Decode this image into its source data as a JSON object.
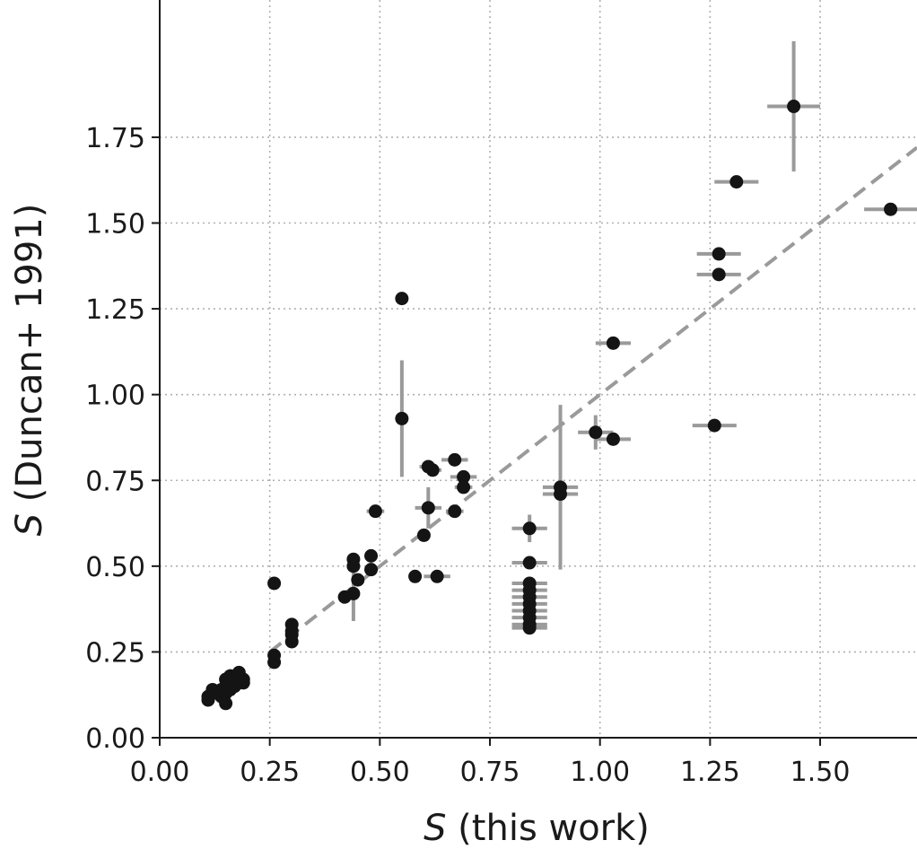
{
  "chart_data": {
    "type": "scatter",
    "title": "",
    "xlabel_symbol": "S",
    "xlabel_rest": " (this work)",
    "ylabel_symbol": "S",
    "ylabel_rest": " (Duncan+ 1991)",
    "xlim": [
      0.0,
      1.72
    ],
    "ylim": [
      0.0,
      2.15
    ],
    "xticks": [
      "0.00",
      "0.25",
      "0.50",
      "0.75",
      "1.00",
      "1.25",
      "1.50"
    ],
    "yticks": [
      "0.00",
      "0.25",
      "0.50",
      "0.75",
      "1.00",
      "1.25",
      "1.50",
      "1.75"
    ],
    "grid": true,
    "reference_line": {
      "style": "dashed",
      "x": [
        0.25,
        1.72
      ],
      "y": [
        0.25,
        1.72
      ]
    },
    "colors": {
      "points": "#141414",
      "errorbars": "#9a9a9a",
      "reference_line": "#9a9a9a",
      "grid": "#b0b0b0",
      "axis": "#1a1a1a"
    },
    "points": [
      {
        "x": 0.11,
        "y": 0.11
      },
      {
        "x": 0.11,
        "y": 0.12
      },
      {
        "x": 0.12,
        "y": 0.13
      },
      {
        "x": 0.12,
        "y": 0.14
      },
      {
        "x": 0.14,
        "y": 0.12
      },
      {
        "x": 0.14,
        "y": 0.14
      },
      {
        "x": 0.15,
        "y": 0.1
      },
      {
        "x": 0.15,
        "y": 0.13
      },
      {
        "x": 0.15,
        "y": 0.15
      },
      {
        "x": 0.15,
        "y": 0.17
      },
      {
        "x": 0.16,
        "y": 0.14
      },
      {
        "x": 0.16,
        "y": 0.16
      },
      {
        "x": 0.16,
        "y": 0.18
      },
      {
        "x": 0.17,
        "y": 0.15
      },
      {
        "x": 0.17,
        "y": 0.17
      },
      {
        "x": 0.18,
        "y": 0.16
      },
      {
        "x": 0.18,
        "y": 0.18
      },
      {
        "x": 0.18,
        "y": 0.19
      },
      {
        "x": 0.19,
        "y": 0.16
      },
      {
        "x": 0.19,
        "y": 0.17
      },
      {
        "x": 0.26,
        "y": 0.22
      },
      {
        "x": 0.26,
        "y": 0.24
      },
      {
        "x": 0.26,
        "y": 0.45
      },
      {
        "x": 0.3,
        "y": 0.28
      },
      {
        "x": 0.3,
        "y": 0.3
      },
      {
        "x": 0.3,
        "y": 0.31
      },
      {
        "x": 0.3,
        "y": 0.33
      },
      {
        "x": 0.42,
        "y": 0.41
      },
      {
        "x": 0.44,
        "y": 0.42,
        "yerr": 0.08
      },
      {
        "x": 0.44,
        "y": 0.5,
        "xerr": 0.01
      },
      {
        "x": 0.44,
        "y": 0.52,
        "xerr": 0.01
      },
      {
        "x": 0.45,
        "y": 0.46
      },
      {
        "x": 0.48,
        "y": 0.49
      },
      {
        "x": 0.48,
        "y": 0.53
      },
      {
        "x": 0.49,
        "y": 0.66,
        "xerr": 0.02
      },
      {
        "x": 0.55,
        "y": 1.28,
        "xerr": 0.01
      },
      {
        "x": 0.55,
        "y": 0.93,
        "yerr": 0.17
      },
      {
        "x": 0.58,
        "y": 0.47,
        "xerr": 0.01
      },
      {
        "x": 0.6,
        "y": 0.59
      },
      {
        "x": 0.61,
        "y": 0.67,
        "xerr": 0.03,
        "yerr": 0.06
      },
      {
        "x": 0.61,
        "y": 0.79,
        "xerr": 0.02
      },
      {
        "x": 0.62,
        "y": 0.78,
        "xerr": 0.02
      },
      {
        "x": 0.63,
        "y": 0.47,
        "xerr": 0.03
      },
      {
        "x": 0.67,
        "y": 0.81,
        "xerr": 0.03
      },
      {
        "x": 0.67,
        "y": 0.66,
        "xerr": 0.02
      },
      {
        "x": 0.69,
        "y": 0.76,
        "xerr": 0.03
      },
      {
        "x": 0.69,
        "y": 0.73,
        "xerr": 0.02
      },
      {
        "x": 0.84,
        "y": 0.61,
        "xerr": 0.04,
        "yerr": 0.04
      },
      {
        "x": 0.84,
        "y": 0.51,
        "xerr": 0.04
      },
      {
        "x": 0.84,
        "y": 0.45,
        "xerr": 0.04
      },
      {
        "x": 0.84,
        "y": 0.43,
        "xerr": 0.04
      },
      {
        "x": 0.84,
        "y": 0.41,
        "xerr": 0.04
      },
      {
        "x": 0.84,
        "y": 0.39,
        "xerr": 0.04
      },
      {
        "x": 0.84,
        "y": 0.37,
        "xerr": 0.04
      },
      {
        "x": 0.84,
        "y": 0.35,
        "xerr": 0.04
      },
      {
        "x": 0.84,
        "y": 0.33,
        "xerr": 0.04
      },
      {
        "x": 0.84,
        "y": 0.32,
        "xerr": 0.04
      },
      {
        "x": 0.91,
        "y": 0.73,
        "xerr": 0.04,
        "yerr": 0.24
      },
      {
        "x": 0.91,
        "y": 0.71,
        "xerr": 0.04
      },
      {
        "x": 0.99,
        "y": 0.89,
        "xerr": 0.04,
        "yerr": 0.05
      },
      {
        "x": 1.03,
        "y": 1.15,
        "xerr": 0.04
      },
      {
        "x": 1.03,
        "y": 0.87,
        "xerr": 0.04
      },
      {
        "x": 1.26,
        "y": 0.91,
        "xerr": 0.05
      },
      {
        "x": 1.27,
        "y": 1.41,
        "xerr": 0.05
      },
      {
        "x": 1.27,
        "y": 1.35,
        "xerr": 0.05
      },
      {
        "x": 1.31,
        "y": 1.62,
        "xerr": 0.05
      },
      {
        "x": 1.44,
        "y": 1.84,
        "xerr": 0.06,
        "yerr": 0.19
      },
      {
        "x": 1.66,
        "y": 1.54,
        "xerr": 0.06
      }
    ]
  }
}
